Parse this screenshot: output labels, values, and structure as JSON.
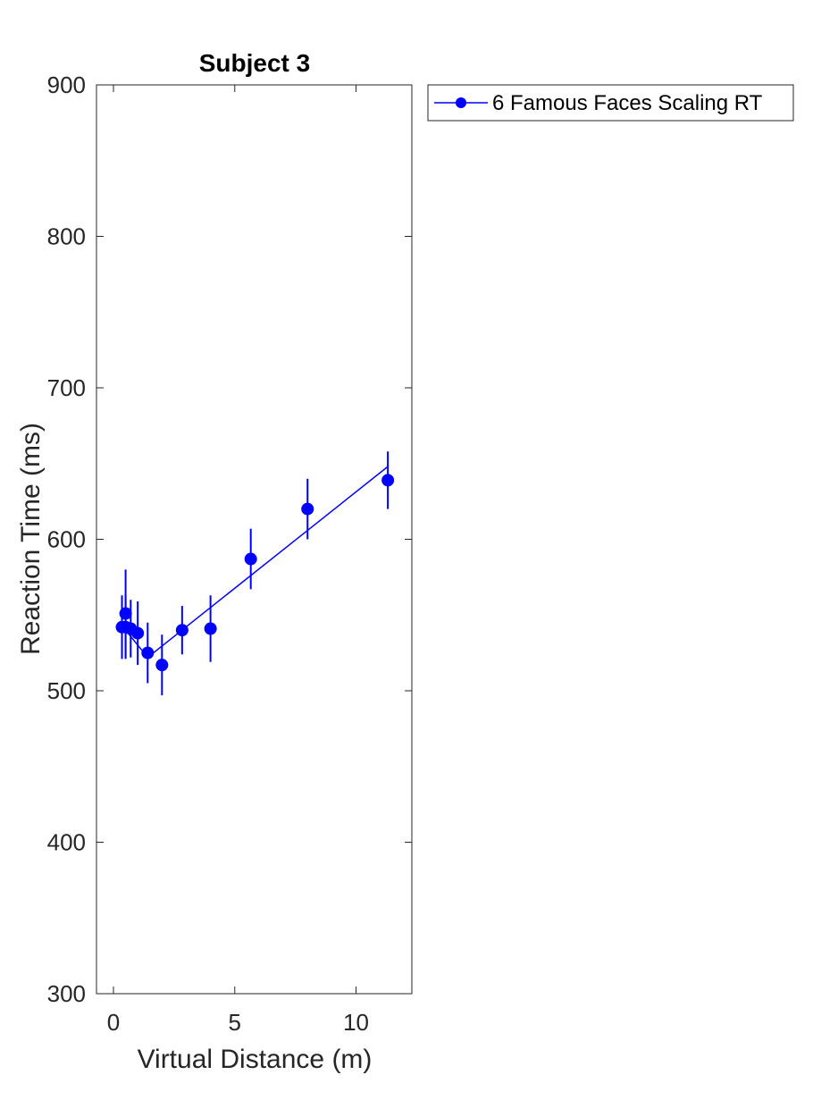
{
  "chart_data": {
    "type": "line",
    "title": "Subject 3",
    "xlabel": "Virtual Distance (m)",
    "ylabel": "Reaction Time (ms)",
    "xlim": [
      -0.7,
      12.3
    ],
    "ylim": [
      300,
      900
    ],
    "xticks": [
      0,
      5,
      10
    ],
    "yticks": [
      300,
      400,
      500,
      600,
      700,
      800,
      900
    ],
    "grid": false,
    "legend_position": "outside-top-right",
    "color": "#0000ff",
    "series": [
      {
        "name": "6 Famous Faces Scaling RT",
        "x": [
          0.35,
          0.5,
          0.5,
          0.71,
          1.0,
          1.41,
          2.0,
          2.83,
          4.0,
          5.66,
          8.0,
          11.31
        ],
        "y": [
          542,
          542,
          551,
          541,
          538,
          525,
          517,
          540,
          541,
          587,
          620,
          639
        ],
        "err": [
          21,
          21,
          29,
          19,
          21,
          20,
          20,
          16,
          22,
          20,
          20,
          19
        ]
      }
    ],
    "fit_lines": [
      {
        "x": [
          0.35,
          1.41
        ],
        "y": [
          543,
          522
        ]
      },
      {
        "x": [
          1.41,
          11.31
        ],
        "y": [
          522,
          648
        ]
      }
    ]
  }
}
